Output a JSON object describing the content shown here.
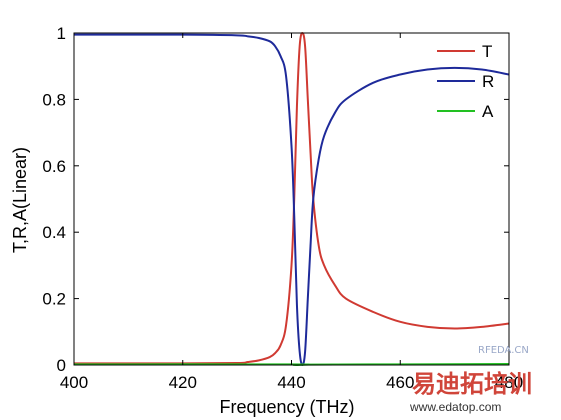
{
  "chart_data": {
    "type": "line",
    "xlabel": "Frequency (THz)",
    "ylabel": "T,R,A(Linear)",
    "xlim": [
      400,
      480
    ],
    "ylim": [
      0,
      1
    ],
    "x_ticks": [
      "400",
      "420",
      "440",
      "460",
      "480"
    ],
    "y_ticks": [
      "0",
      "0.2",
      "0.4",
      "0.6",
      "0.8",
      "1"
    ],
    "legend_position": "top-right",
    "series": [
      {
        "name": "T",
        "color": "#d03a32",
        "points": [
          [
            400,
            0.005
          ],
          [
            420,
            0.005
          ],
          [
            430,
            0.006
          ],
          [
            432,
            0.009
          ],
          [
            434,
            0.014
          ],
          [
            436,
            0.024
          ],
          [
            437,
            0.036
          ],
          [
            438,
            0.06
          ],
          [
            439,
            0.12
          ],
          [
            440,
            0.3
          ],
          [
            440.5,
            0.5
          ],
          [
            441,
            0.78
          ],
          [
            441.5,
            0.96
          ],
          [
            442,
            1.0
          ],
          [
            442.5,
            0.96
          ],
          [
            443,
            0.8
          ],
          [
            443.5,
            0.64
          ],
          [
            444,
            0.5
          ],
          [
            445,
            0.36
          ],
          [
            446,
            0.3
          ],
          [
            448,
            0.24
          ],
          [
            450,
            0.2
          ],
          [
            455,
            0.16
          ],
          [
            460,
            0.13
          ],
          [
            465,
            0.115
          ],
          [
            470,
            0.11
          ],
          [
            475,
            0.115
          ],
          [
            480,
            0.125
          ]
        ]
      },
      {
        "name": "R",
        "color": "#1e2a9a",
        "points": [
          [
            400,
            0.995
          ],
          [
            420,
            0.995
          ],
          [
            430,
            0.993
          ],
          [
            432,
            0.99
          ],
          [
            434,
            0.985
          ],
          [
            436,
            0.975
          ],
          [
            437,
            0.96
          ],
          [
            438,
            0.93
          ],
          [
            439,
            0.87
          ],
          [
            440,
            0.66
          ],
          [
            440.5,
            0.45
          ],
          [
            441,
            0.18
          ],
          [
            441.5,
            0.04
          ],
          [
            442,
            0.0
          ],
          [
            442.5,
            0.04
          ],
          [
            443,
            0.2
          ],
          [
            443.5,
            0.36
          ],
          [
            444,
            0.5
          ],
          [
            445,
            0.62
          ],
          [
            446,
            0.69
          ],
          [
            448,
            0.76
          ],
          [
            450,
            0.8
          ],
          [
            455,
            0.85
          ],
          [
            460,
            0.875
          ],
          [
            465,
            0.89
          ],
          [
            470,
            0.895
          ],
          [
            475,
            0.89
          ],
          [
            480,
            0.875
          ]
        ]
      },
      {
        "name": "A",
        "color": "#22c022",
        "points": [
          [
            400,
            0.002
          ],
          [
            440,
            0.002
          ],
          [
            441,
            0.0
          ],
          [
            442,
            0.001
          ],
          [
            460,
            0.002
          ],
          [
            480,
            0.003
          ]
        ]
      }
    ]
  },
  "watermark": {
    "site_small": "RFEDA.CN",
    "brand_cn": "易迪拓培训",
    "url": "www.edatop.com"
  }
}
